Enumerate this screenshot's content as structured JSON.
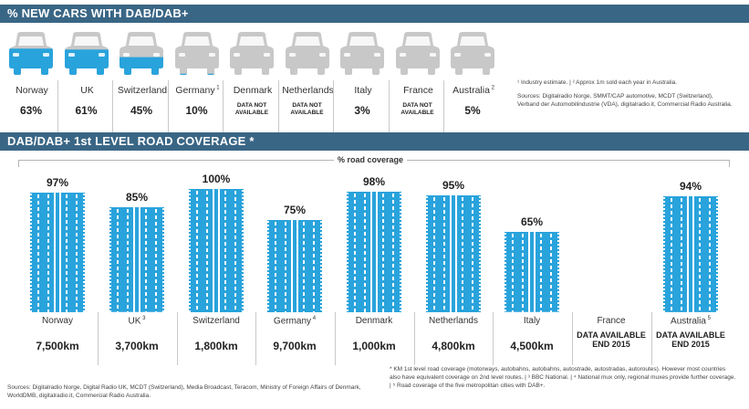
{
  "section1": {
    "title": "% NEW CARS WITH DAB/DAB+",
    "cars": [
      {
        "country": "Norway",
        "sup": "",
        "value_label": "63%",
        "value": 63,
        "available": true
      },
      {
        "country": "UK",
        "sup": "",
        "value_label": "61%",
        "value": 61,
        "available": true
      },
      {
        "country": "Switzerland",
        "sup": "",
        "value_label": "45%",
        "value": 45,
        "available": true
      },
      {
        "country": "Germany",
        "sup": "1",
        "value_label": "10%",
        "value": 10,
        "available": true
      },
      {
        "country": "Denmark",
        "sup": "",
        "value_label": "DATA NOT AVAILABLE",
        "value": null,
        "available": false
      },
      {
        "country": "Netherlands",
        "sup": "",
        "value_label": "DATA NOT AVAILABLE",
        "value": null,
        "available": false
      },
      {
        "country": "Italy",
        "sup": "",
        "value_label": "3%",
        "value": 3,
        "available": true
      },
      {
        "country": "France",
        "sup": "",
        "value_label": "DATA NOT AVAILABLE",
        "value": null,
        "available": false
      },
      {
        "country": "Australia",
        "sup": "2",
        "value_label": "5%",
        "value": 5,
        "available": true
      }
    ],
    "footnotes": "¹ Industry estimate.   |   ² Approx 1m sold each year in Australia.",
    "sources": "Sources: Digitalradio Norge, SMMT/CAP automotive, MCDT (Switzerland), Verband der Automobilindustrie (VDA), digitalradio.it, Commercial Radio Australia."
  },
  "section2": {
    "title": "DAB/DAB+ 1st LEVEL ROAD COVERAGE *",
    "axis_title": "% road coverage",
    "roads": [
      {
        "country": "Norway",
        "sup": "",
        "pct_label": "97%",
        "pct": 97,
        "km": "7,500km",
        "km_available": true
      },
      {
        "country": "UK",
        "sup": "3",
        "pct_label": "85%",
        "pct": 85,
        "km": "3,700km",
        "km_available": true
      },
      {
        "country": "Switzerland",
        "sup": "",
        "pct_label": "100%",
        "pct": 100,
        "km": "1,800km",
        "km_available": true
      },
      {
        "country": "Germany",
        "sup": "4",
        "pct_label": "75%",
        "pct": 75,
        "km": "9,700km",
        "km_available": true
      },
      {
        "country": "Denmark",
        "sup": "",
        "pct_label": "98%",
        "pct": 98,
        "km": "1,000km",
        "km_available": true
      },
      {
        "country": "Netherlands",
        "sup": "",
        "pct_label": "95%",
        "pct": 95,
        "km": "4,800km",
        "km_available": true
      },
      {
        "country": "Italy",
        "sup": "",
        "pct_label": "65%",
        "pct": 65,
        "km": "4,500km",
        "km_available": true
      },
      {
        "country": "France",
        "sup": "",
        "pct_label": "",
        "pct": null,
        "km": "DATA AVAILABLE END 2015",
        "km_available": false
      },
      {
        "country": "Australia",
        "sup": "5",
        "pct_label": "94%",
        "pct": 94,
        "km": "DATA AVAILABLE END 2015",
        "km_available": false
      }
    ],
    "sources": "Sources: Digitalradio Norge, Digital Radio UK, MCDT (Switzerland), Media Broadcast, Teracom, Ministry of Foreign Affairs of Denmark, WorldDMB, digitalradio.it, Commercial Radio Australia.",
    "notes": "* KM 1st level road coverage (motorways, autobahns, autobahns, autostrade, autostradas, autoroutes). However most countries also have equivalent coverage on 2nd level routes.  |  ³ BBC National.  |  ⁴ National mux only, regional muxes provide further coverage.  |  ⁵ Road coverage of the five metropolitan cities with DAB+."
  },
  "colors": {
    "band": "#3a6685",
    "car_fill": "#29a3dc",
    "car_empty": "#c8c8c8",
    "road": "#29a3dc",
    "road_dash": "#ffffff"
  },
  "chart_data": [
    {
      "type": "bar",
      "title": "% NEW CARS WITH DAB/DAB+",
      "categories": [
        "Norway",
        "UK",
        "Switzerland",
        "Germany",
        "Denmark",
        "Netherlands",
        "Italy",
        "France",
        "Australia"
      ],
      "values": [
        63,
        61,
        45,
        10,
        null,
        null,
        3,
        null,
        5
      ],
      "ylim": [
        0,
        100
      ]
    },
    {
      "type": "bar",
      "title": "DAB/DAB+ 1st LEVEL ROAD COVERAGE *",
      "ylabel": "% road coverage",
      "categories": [
        "Norway",
        "UK",
        "Switzerland",
        "Germany",
        "Denmark",
        "Netherlands",
        "Italy",
        "France",
        "Australia"
      ],
      "values": [
        97,
        85,
        100,
        75,
        98,
        95,
        65,
        null,
        94
      ],
      "ylim": [
        0,
        100
      ]
    }
  ]
}
